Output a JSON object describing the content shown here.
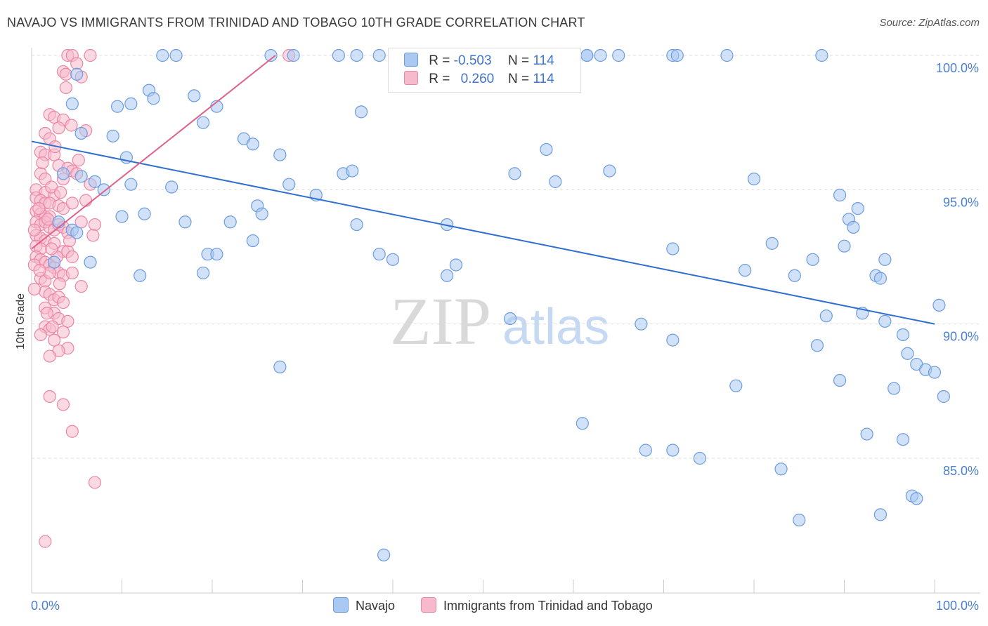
{
  "title": "NAVAJO VS IMMIGRANTS FROM TRINIDAD AND TOBAGO 10TH GRADE CORRELATION CHART",
  "source": "Source: ZipAtlas.com",
  "watermark": {
    "zip": "ZIP",
    "atlas": "atlas"
  },
  "legend": {
    "navajo": {
      "r_label": "R =",
      "r_value": "-0.503",
      "n_label": "N =",
      "n_value": "114"
    },
    "trinidad": {
      "r_label": "R =",
      "r_value": "0.260",
      "n_label": "N =",
      "n_value": "114"
    }
  },
  "bottom_legend": {
    "navajo": "Navajo",
    "trinidad": "Immigrants from Trinidad and Tobago"
  },
  "colors": {
    "navajo_fill": "#a9c8f2",
    "navajo_stroke": "#6b9ce0",
    "navajo_line": "#2f6fcf",
    "trinidad_fill": "#f7b9cc",
    "trinidad_stroke": "#eb86a6",
    "trinidad_line": "#e0608a",
    "grid": "#dddddd",
    "axis_text": "#4a7fd0"
  },
  "chart_data": {
    "type": "scatter",
    "title": "NAVAJO VS IMMIGRANTS FROM TRINIDAD AND TOBAGO 10TH GRADE CORRELATION CHART",
    "xlabel": "",
    "ylabel": "10th Grade",
    "xlim": [
      0,
      100
    ],
    "ylim": [
      80.5,
      101
    ],
    "x_tick_labels": [
      "0.0%",
      "100.0%"
    ],
    "y_ticks": [
      85,
      90,
      95,
      100
    ],
    "y_tick_labels": [
      "85.0%",
      "90.0%",
      "95.0%",
      "100.0%"
    ],
    "grid": true,
    "series": [
      {
        "name": "Navajo",
        "r": -0.503,
        "n": 114,
        "trend": {
          "x": [
            0,
            100
          ],
          "y": [
            96.8,
            90.0
          ]
        },
        "points": [
          [
            14.5,
            100
          ],
          [
            16,
            100
          ],
          [
            26.5,
            100
          ],
          [
            29,
            100
          ],
          [
            34,
            100
          ],
          [
            36,
            100
          ],
          [
            38.5,
            100
          ],
          [
            41,
            100
          ],
          [
            61.5,
            100
          ],
          [
            61.5,
            100
          ],
          [
            63,
            100
          ],
          [
            65,
            100
          ],
          [
            71,
            100
          ],
          [
            71.5,
            100
          ],
          [
            77,
            100
          ],
          [
            87.5,
            100
          ],
          [
            5,
            99.3
          ],
          [
            13,
            98.7
          ],
          [
            4.5,
            98.2
          ],
          [
            9.5,
            98.1
          ],
          [
            11,
            98.2
          ],
          [
            13.5,
            98.4
          ],
          [
            18,
            98.5
          ],
          [
            20.5,
            98.1
          ],
          [
            36.5,
            97.9
          ],
          [
            19,
            97.5
          ],
          [
            5.5,
            97.1
          ],
          [
            9,
            97.0
          ],
          [
            23.5,
            96.9
          ],
          [
            24.5,
            96.7
          ],
          [
            57,
            96.5
          ],
          [
            10.5,
            96.2
          ],
          [
            27.5,
            96.3
          ],
          [
            3.5,
            95.6
          ],
          [
            5.5,
            95.5
          ],
          [
            7,
            95.3
          ],
          [
            8,
            95.0
          ],
          [
            11,
            95.2
          ],
          [
            15.5,
            95.1
          ],
          [
            34.5,
            95.6
          ],
          [
            35.5,
            95.7
          ],
          [
            53.5,
            95.6
          ],
          [
            58,
            95.3
          ],
          [
            64,
            95.7
          ],
          [
            80,
            95.4
          ],
          [
            89.5,
            94.8
          ],
          [
            28.5,
            95.2
          ],
          [
            31.5,
            94.8
          ],
          [
            25,
            94.4
          ],
          [
            25.5,
            94.1
          ],
          [
            10,
            94.0
          ],
          [
            12.5,
            94.1
          ],
          [
            17,
            93.8
          ],
          [
            22,
            93.8
          ],
          [
            36,
            93.7
          ],
          [
            46,
            93.7
          ],
          [
            91.5,
            94.3
          ],
          [
            90.5,
            93.9
          ],
          [
            91,
            93.6
          ],
          [
            3,
            93.8
          ],
          [
            4.5,
            93.5
          ],
          [
            5,
            93.4
          ],
          [
            24.5,
            93.1
          ],
          [
            82,
            93.0
          ],
          [
            71,
            92.8
          ],
          [
            90,
            92.9
          ],
          [
            2.5,
            92.3
          ],
          [
            6.5,
            92.3
          ],
          [
            19.5,
            92.6
          ],
          [
            20.5,
            92.6
          ],
          [
            38.5,
            92.6
          ],
          [
            40,
            92.4
          ],
          [
            47,
            92.2
          ],
          [
            86.5,
            92.4
          ],
          [
            94.5,
            92.4
          ],
          [
            12,
            91.8
          ],
          [
            19,
            91.9
          ],
          [
            46,
            91.8
          ],
          [
            79,
            92.0
          ],
          [
            84.5,
            91.8
          ],
          [
            93.5,
            91.8
          ],
          [
            94,
            91.7
          ],
          [
            100.5,
            90.7
          ],
          [
            53,
            90.2
          ],
          [
            88,
            90.3
          ],
          [
            92,
            90.4
          ],
          [
            94.5,
            90.1
          ],
          [
            67.5,
            90.0
          ],
          [
            96.5,
            89.6
          ],
          [
            71,
            89.4
          ],
          [
            87,
            89.2
          ],
          [
            27.5,
            88.4
          ],
          [
            98,
            88.5
          ],
          [
            97,
            88.9
          ],
          [
            99,
            88.3
          ],
          [
            100,
            88.2
          ],
          [
            78,
            87.7
          ],
          [
            89.5,
            87.9
          ],
          [
            95.5,
            87.6
          ],
          [
            101,
            87.3
          ],
          [
            61,
            86.3
          ],
          [
            92.5,
            85.9
          ],
          [
            96.5,
            85.7
          ],
          [
            68,
            85.3
          ],
          [
            71,
            85.3
          ],
          [
            74,
            85.0
          ],
          [
            83,
            84.6
          ],
          [
            97.5,
            83.6
          ],
          [
            98,
            83.5
          ],
          [
            85,
            82.7
          ],
          [
            94,
            82.9
          ],
          [
            39,
            81.4
          ]
        ]
      },
      {
        "name": "Immigrants from Trinidad and Tobago",
        "r": 0.26,
        "n": 114,
        "trend": {
          "x": [
            0,
            27
          ],
          "y": [
            92.8,
            100
          ]
        },
        "points": [
          [
            4,
            100
          ],
          [
            4.5,
            100
          ],
          [
            6.5,
            100
          ],
          [
            28.5,
            100
          ],
          [
            5,
            99.7
          ],
          [
            3.5,
            99.4
          ],
          [
            3.8,
            99.3
          ],
          [
            5.5,
            99.2
          ],
          [
            2,
            97.8
          ],
          [
            2.5,
            97.7
          ],
          [
            3.5,
            97.6
          ],
          [
            3,
            97.3
          ],
          [
            6,
            97.2
          ],
          [
            1.5,
            97.1
          ],
          [
            2,
            96.9
          ],
          [
            1,
            96.4
          ],
          [
            1.5,
            96.3
          ],
          [
            2.5,
            96.3
          ],
          [
            3,
            95.9
          ],
          [
            4,
            95.8
          ],
          [
            4.5,
            95.7
          ],
          [
            1,
            95.6
          ],
          [
            1.5,
            95.4
          ],
          [
            3.5,
            95.4
          ],
          [
            6.5,
            95.2
          ],
          [
            0.5,
            95.0
          ],
          [
            1.5,
            94.9
          ],
          [
            2.5,
            94.8
          ],
          [
            0.5,
            94.7
          ],
          [
            1,
            94.6
          ],
          [
            1.5,
            94.5
          ],
          [
            2,
            94.5
          ],
          [
            3,
            94.4
          ],
          [
            3.5,
            94.3
          ],
          [
            4.5,
            94.5
          ],
          [
            0.5,
            94.2
          ],
          [
            1,
            94.1
          ],
          [
            1.5,
            94.0
          ],
          [
            2,
            94.0
          ],
          [
            0.5,
            93.8
          ],
          [
            1,
            93.7
          ],
          [
            1.5,
            93.8
          ],
          [
            2,
            93.6
          ],
          [
            2.5,
            93.5
          ],
          [
            3,
            93.7
          ],
          [
            3.5,
            93.6
          ],
          [
            4,
            93.4
          ],
          [
            5.5,
            93.8
          ],
          [
            7,
            93.7
          ],
          [
            0.5,
            93.3
          ],
          [
            1,
            93.2
          ],
          [
            1.5,
            93.1
          ],
          [
            2.5,
            93.0
          ],
          [
            0.5,
            92.9
          ],
          [
            1,
            92.8
          ],
          [
            3.5,
            92.7
          ],
          [
            0.5,
            92.5
          ],
          [
            1,
            92.4
          ],
          [
            1.5,
            92.3
          ],
          [
            4,
            92.7
          ],
          [
            2,
            92.2
          ],
          [
            2.5,
            92.1
          ],
          [
            3,
            91.9
          ],
          [
            3.5,
            91.8
          ],
          [
            1,
            91.7
          ],
          [
            1.5,
            91.6
          ],
          [
            2,
            91.9
          ],
          [
            4.5,
            91.9
          ],
          [
            1.5,
            91.2
          ],
          [
            2,
            91.1
          ],
          [
            2.5,
            90.9
          ],
          [
            3,
            91.0
          ],
          [
            3.5,
            90.8
          ],
          [
            1.5,
            90.6
          ],
          [
            2.5,
            90.4
          ],
          [
            3,
            90.2
          ],
          [
            4,
            90.1
          ],
          [
            1.5,
            89.9
          ],
          [
            2,
            89.8
          ],
          [
            3.5,
            89.7
          ],
          [
            2.5,
            89.4
          ],
          [
            4,
            89.1
          ],
          [
            3,
            89.0
          ],
          [
            2,
            88.8
          ],
          [
            1,
            89.6
          ],
          [
            4.5,
            92.5
          ],
          [
            5.5,
            91.4
          ],
          [
            6,
            94.6
          ],
          [
            2,
            87.3
          ],
          [
            3.5,
            87.0
          ],
          [
            4.5,
            86.0
          ],
          [
            7,
            84.1
          ],
          [
            1.5,
            81.9
          ],
          [
            0.3,
            93.5
          ],
          [
            0.3,
            92.2
          ],
          [
            0.3,
            91.3
          ],
          [
            2.2,
            95.1
          ],
          [
            1.2,
            96.0
          ],
          [
            5,
            95.6
          ],
          [
            6.8,
            93.3
          ],
          [
            4.2,
            93.1
          ],
          [
            2.8,
            92.5
          ],
          [
            1.8,
            93.9
          ],
          [
            3.2,
            94.9
          ],
          [
            0.8,
            94.3
          ],
          [
            2.6,
            96.6
          ],
          [
            3.8,
            98.8
          ],
          [
            4.4,
            97.4
          ],
          [
            5.2,
            96.1
          ],
          [
            2.2,
            92.8
          ],
          [
            0.9,
            92.0
          ],
          [
            1.7,
            90.4
          ],
          [
            2.3,
            89.9
          ],
          [
            3.1,
            91.5
          ]
        ]
      }
    ]
  }
}
